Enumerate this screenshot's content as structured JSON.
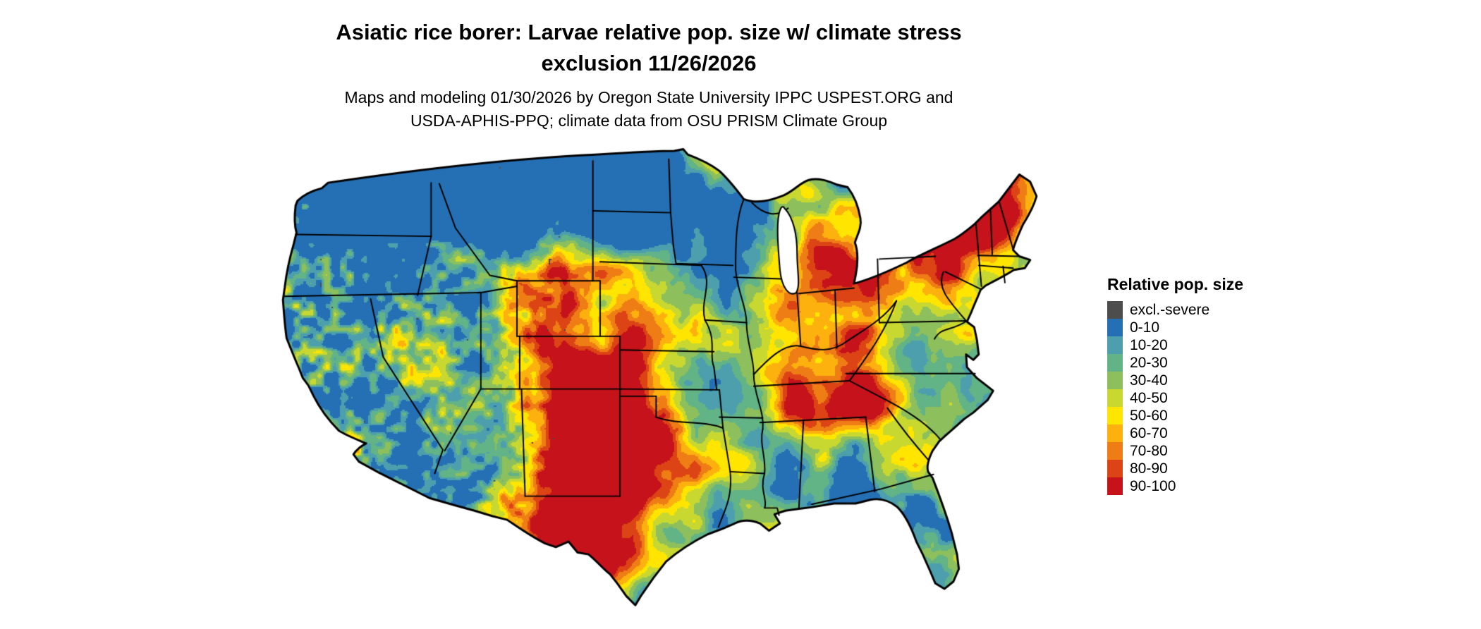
{
  "title": {
    "line1": "Asiatic rice borer: Larvae relative pop. size w/ climate stress",
    "line2": "exclusion 11/26/2026"
  },
  "subtitle": {
    "line1": "Maps and modeling 01/30/2026 by Oregon State University IPPC USPEST.ORG and",
    "line2": "USDA-APHIS-PPQ; climate data from OSU PRISM Climate Group"
  },
  "map": {
    "region": "Contiguous United States",
    "kind": "raster choropleth of relative population size",
    "border_color": "#000000",
    "water_color": "#ffffff"
  },
  "legend": {
    "title": "Relative pop. size",
    "entries": [
      {
        "label": "excl.-severe",
        "color": "#4d4d4d"
      },
      {
        "label": "0-10",
        "color": "#2570b4"
      },
      {
        "label": "10-20",
        "color": "#4d9fae"
      },
      {
        "label": "20-30",
        "color": "#62b386"
      },
      {
        "label": "30-40",
        "color": "#8dc05c"
      },
      {
        "label": "40-50",
        "color": "#c8d831"
      },
      {
        "label": "50-60",
        "color": "#ffe500"
      },
      {
        "label": "60-70",
        "color": "#fdb10f"
      },
      {
        "label": "70-80",
        "color": "#ef7d15"
      },
      {
        "label": "80-90",
        "color": "#dc4415"
      },
      {
        "label": "90-100",
        "color": "#c5121b"
      }
    ]
  }
}
